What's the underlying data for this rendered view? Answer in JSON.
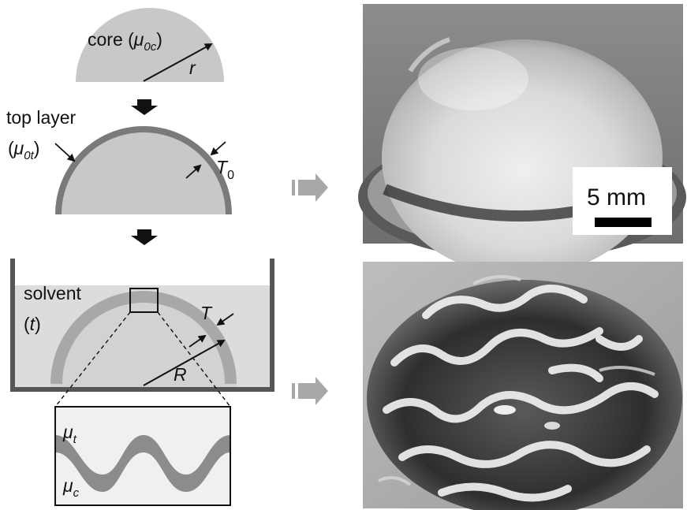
{
  "step1": {
    "label": "core (",
    "mu": "μ",
    "sub": "0c",
    "close": ")",
    "radius": "r"
  },
  "step2": {
    "label_line1": "top layer",
    "mu": "μ",
    "sub": "0t",
    "close": ")",
    "open": "(",
    "thickness": "T",
    "thickness_sub": "0"
  },
  "step3": {
    "solvent_line1": "solvent",
    "solvent_line2_open": "(",
    "solvent_line2_t": "t",
    "solvent_line2_close": ")",
    "thickness": "T",
    "radius": "R"
  },
  "inset": {
    "mu_top": "μ",
    "mu_top_sub": "t",
    "mu_core": "μ",
    "mu_core_sub": "c"
  },
  "scale_bar": {
    "label": "5 mm"
  },
  "colors": {
    "core_fill": "#c8c8c8",
    "top_layer": "#7a7a7a",
    "solvent_fill": "#dcdcdc",
    "container_wall": "#555555",
    "arrow_gray": "#a8a8a8"
  }
}
